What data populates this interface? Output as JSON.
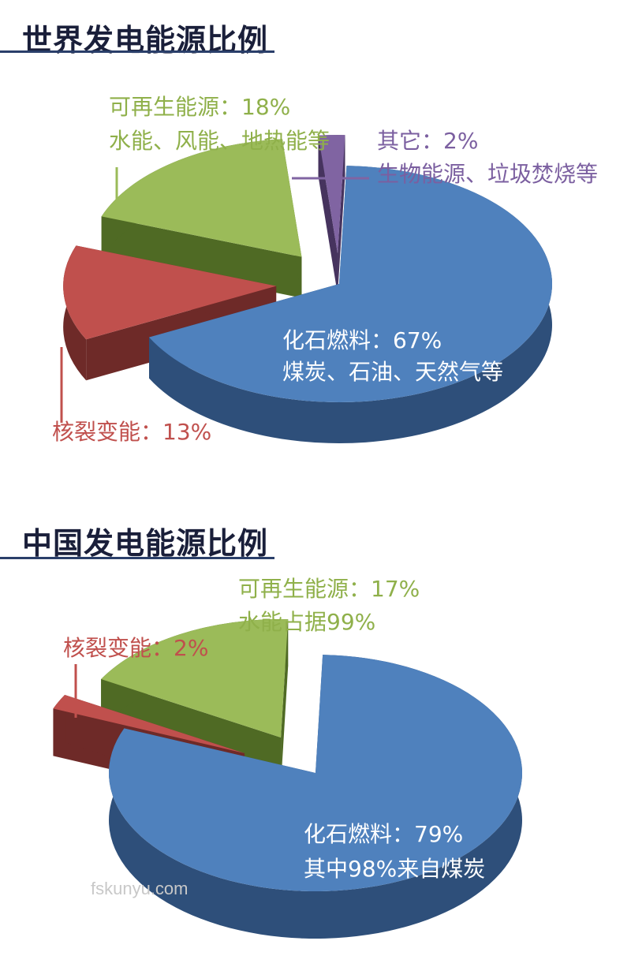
{
  "chart_data": [
    {
      "type": "pie",
      "title": "世界发电能源比例",
      "slices": [
        {
          "name": "化石燃料",
          "value": 67,
          "color": "#4f81bd",
          "side": "#2e4f7a",
          "label_line1": "化石燃料：67%",
          "label_line2": "煤炭、石油、天然气等",
          "label_color": "#ffffff"
        },
        {
          "name": "核裂变能",
          "value": 13,
          "color": "#c0504d",
          "side": "#6e2a28",
          "label_line1": "核裂变能：13%",
          "label_line2": "",
          "label_color": "#c0504d"
        },
        {
          "name": "可再生能源",
          "value": 18,
          "color": "#9bbb59",
          "side": "#4f6a24",
          "label_line1": "可再生能源：18%",
          "label_line2": "水能、风能、地热能等",
          "label_color": "#8fb04a"
        },
        {
          "name": "其它",
          "value": 2,
          "color": "#8064a2",
          "side": "#46335e",
          "label_line1": "其它：2%",
          "label_line2": "生物能源、垃圾焚烧等",
          "label_color": "#7b5fa0"
        }
      ]
    },
    {
      "type": "pie",
      "title": "中国发电能源比例",
      "slices": [
        {
          "name": "化石燃料",
          "value": 79,
          "color": "#4f81bd",
          "side": "#2e4f7a",
          "label_line1": "化石燃料：79%",
          "label_line2": "其中98%来自煤炭",
          "label_color": "#ffffff"
        },
        {
          "name": "核裂变能",
          "value": 2,
          "color": "#c0504d",
          "side": "#6e2a28",
          "label_line1": "核裂变能：2%",
          "label_line2": "",
          "label_color": "#c0504d"
        },
        {
          "name": "可再生能源",
          "value": 17,
          "color": "#9bbb59",
          "side": "#4f6a24",
          "label_line1": "可再生能源：17%",
          "label_line2": "水能占据99%",
          "label_color": "#8fb04a"
        }
      ]
    }
  ],
  "watermark": "fskunyu.com"
}
